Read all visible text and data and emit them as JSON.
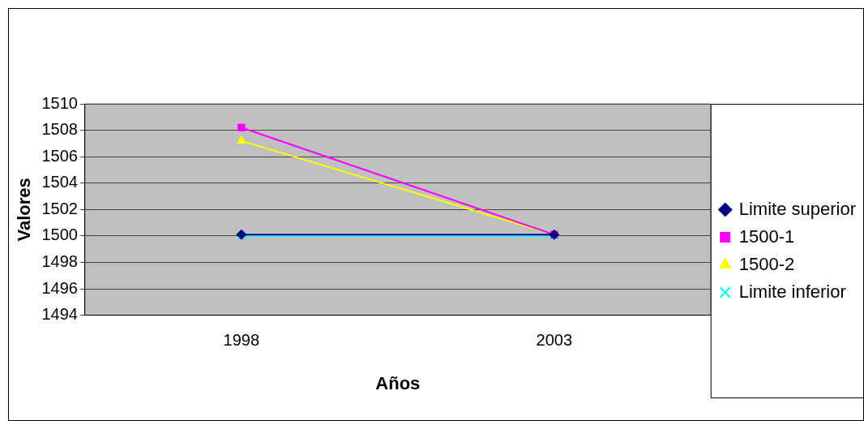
{
  "chart_data": {
    "type": "line",
    "xlabel": "Años",
    "ylabel": "Valores",
    "categories": [
      "1998",
      "2003"
    ],
    "series": [
      {
        "name": "Limite superior",
        "color": "#000080",
        "marker": "diamond",
        "values": [
          1500.1,
          1500.1
        ]
      },
      {
        "name": "1500-1",
        "color": "#ff00ff",
        "marker": "square",
        "values": [
          1508.2,
          1500.1
        ]
      },
      {
        "name": "1500-2",
        "color": "#ffff00",
        "marker": "triangle",
        "values": [
          1507.2,
          1500.1
        ]
      },
      {
        "name": "Limite inferior",
        "color": "#00ffff",
        "marker": "cross",
        "values": [
          1500,
          1500
        ]
      }
    ],
    "ylim": [
      1494,
      1510
    ],
    "yticks": [
      1494,
      1496,
      1498,
      1500,
      1502,
      1504,
      1506,
      1508,
      1510
    ],
    "grid": "y",
    "legend": "right"
  }
}
